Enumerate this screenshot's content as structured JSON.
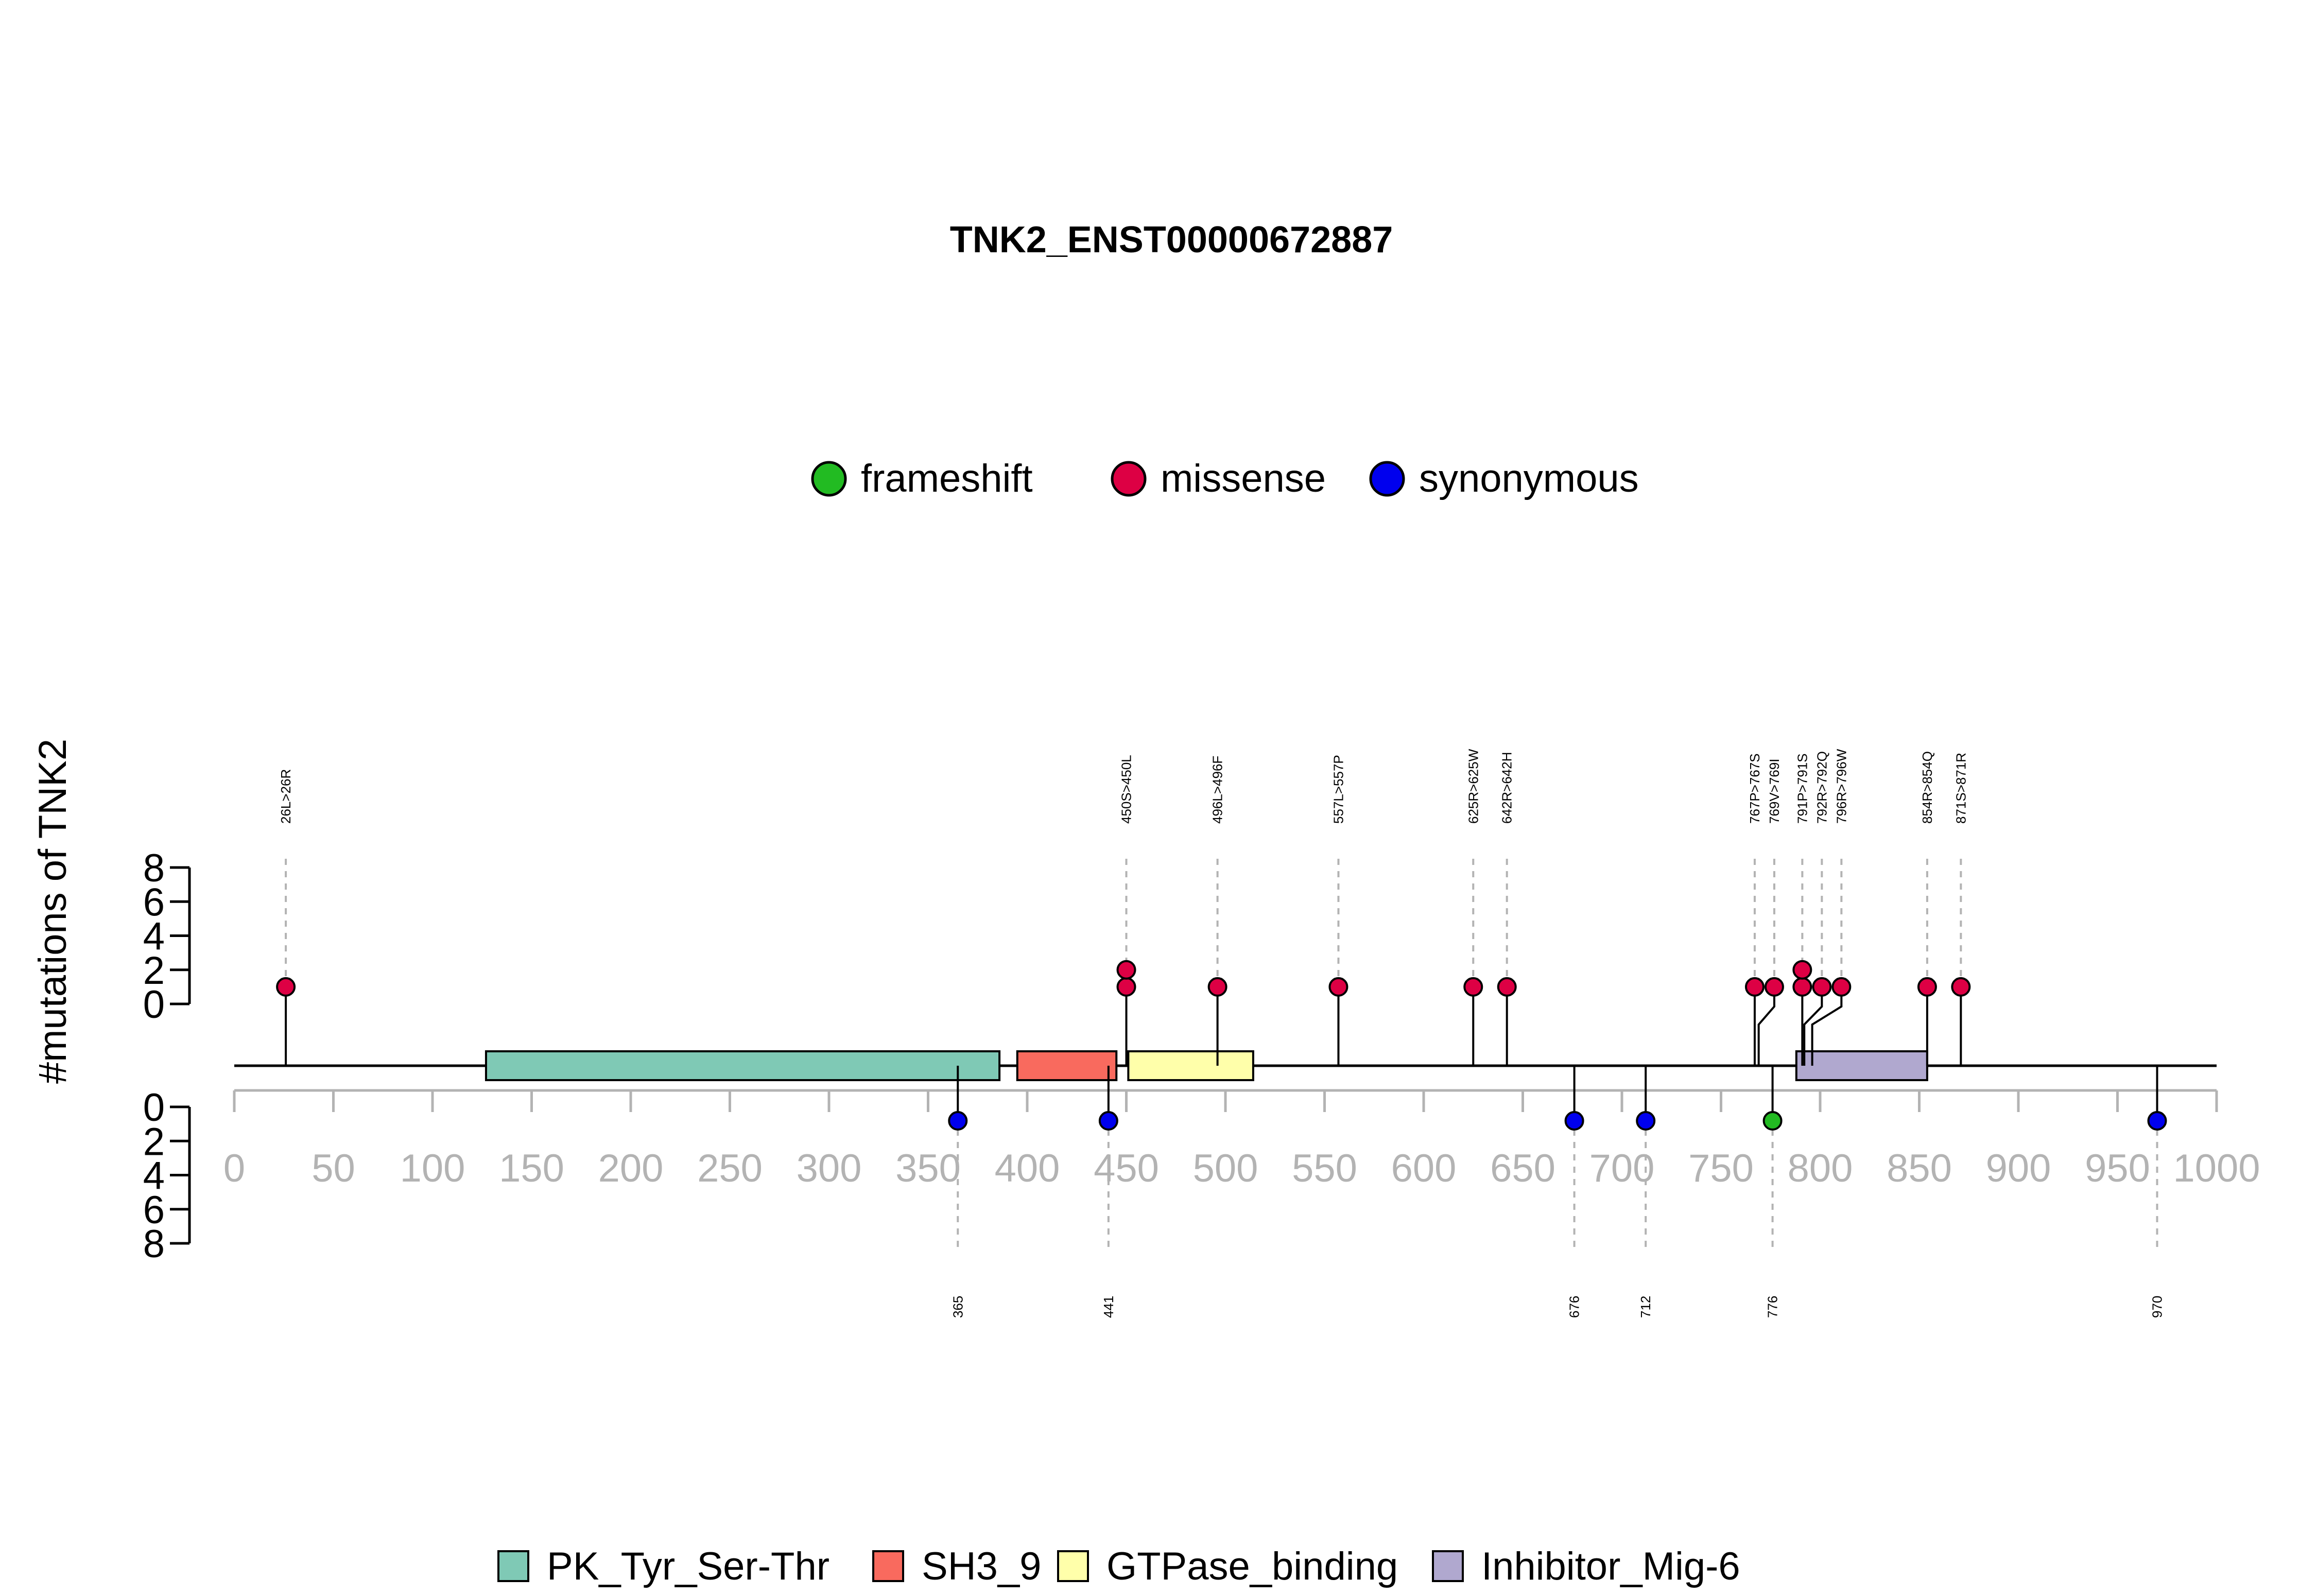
{
  "chart_data": {
    "type": "lollipop",
    "title": "TNK2_ENST00000672887",
    "ylabel": "#mutations of TNK2",
    "xlim": [
      0,
      1000
    ],
    "x_ticks": [
      "0",
      "50",
      "100",
      "150",
      "200",
      "250",
      "300",
      "350",
      "400",
      "450",
      "500",
      "550",
      "600",
      "650",
      "700",
      "750",
      "800",
      "850",
      "900",
      "950",
      "1000"
    ],
    "y_ticks_top": [
      "0",
      "2",
      "4",
      "6",
      "8"
    ],
    "y_ticks_bottom": [
      "0",
      "2",
      "4",
      "6",
      "8"
    ],
    "ylim": [
      0,
      8
    ],
    "legend_mutations": [
      {
        "name": "frameshift",
        "color": "#22bb22"
      },
      {
        "name": "missense",
        "color": "#dd0044"
      },
      {
        "name": "synonymous",
        "color": "#0000ee"
      }
    ],
    "domains": [
      {
        "name": "PK_Tyr_Ser-Thr",
        "start": 127,
        "end": 386,
        "color": "#7fc9b5"
      },
      {
        "name": "SH3_9",
        "start": 395,
        "end": 445,
        "color": "#f96a5e"
      },
      {
        "name": "GTPase_binding",
        "start": 451,
        "end": 514,
        "color": "#ffffaa"
      },
      {
        "name": "Inhibitor_Mig-6",
        "start": 788,
        "end": 854,
        "color": "#b0a8cf"
      }
    ],
    "top_mutations": [
      {
        "label": "26L>26R",
        "pos": 26,
        "count": 1,
        "type": "missense"
      },
      {
        "label": "450S>450L",
        "pos": 450,
        "count": 2,
        "type": "missense"
      },
      {
        "label": "496L>496F",
        "pos": 496,
        "count": 1,
        "type": "missense"
      },
      {
        "label": "557L>557P",
        "pos": 557,
        "count": 1,
        "type": "missense"
      },
      {
        "label": "625R>625W",
        "pos": 625,
        "count": 1,
        "type": "missense"
      },
      {
        "label": "642R>642H",
        "pos": 642,
        "count": 1,
        "type": "missense"
      },
      {
        "label": "767P>767S",
        "pos": 767,
        "count": 1,
        "type": "missense"
      },
      {
        "label": "769V>769I",
        "pos": 769,
        "count": 1,
        "type": "missense"
      },
      {
        "label": "791P>791S",
        "pos": 791,
        "count": 2,
        "type": "missense"
      },
      {
        "label": "792R>792Q",
        "pos": 792,
        "count": 1,
        "type": "missense"
      },
      {
        "label": "796R>796W",
        "pos": 796,
        "count": 1,
        "type": "missense"
      },
      {
        "label": "854R>854Q",
        "pos": 854,
        "count": 1,
        "type": "missense"
      },
      {
        "label": "871S>871R",
        "pos": 871,
        "count": 1,
        "type": "missense"
      }
    ],
    "bottom_mutations": [
      {
        "label": "365",
        "pos": 365,
        "count": 1,
        "type": "synonymous"
      },
      {
        "label": "441",
        "pos": 441,
        "count": 1,
        "type": "synonymous"
      },
      {
        "label": "676",
        "pos": 676,
        "count": 1,
        "type": "synonymous"
      },
      {
        "label": "712",
        "pos": 712,
        "count": 1,
        "type": "synonymous"
      },
      {
        "label": "776",
        "pos": 776,
        "count": 1,
        "type": "frameshift"
      },
      {
        "label": "970",
        "pos": 970,
        "count": 1,
        "type": "synonymous"
      }
    ]
  }
}
